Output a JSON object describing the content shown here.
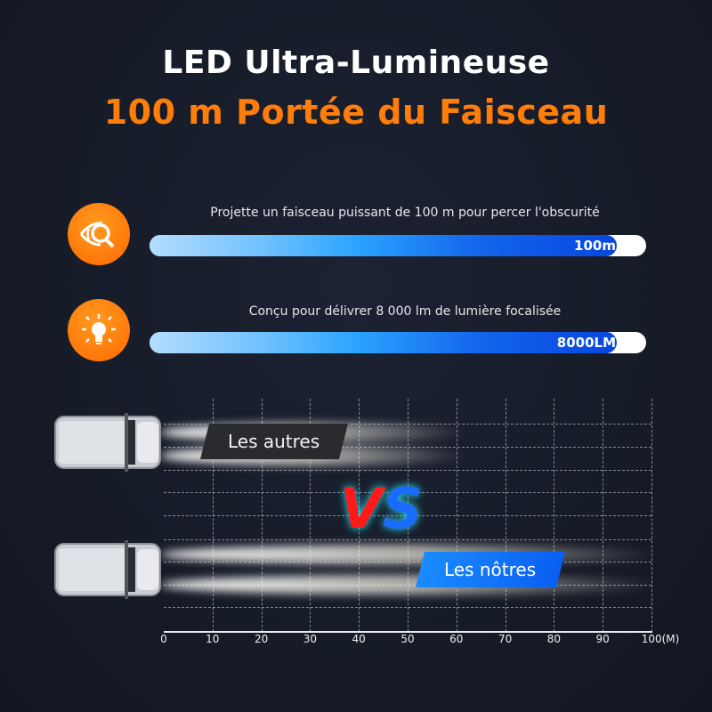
{
  "header": {
    "title": "LED Ultra-Lumineuse",
    "subtitle": "100 m Portée du Faisceau"
  },
  "features": [
    {
      "icon": "eye-search-icon",
      "description": "Projette un faisceau puissant de 100 m pour percer l'obscurité",
      "bar_label": "100m",
      "fill_percent": 94
    },
    {
      "icon": "lightbulb-icon",
      "description": "Conçu pour délivrer 8 000 lm de lumière focalisée",
      "bar_label": "8000LM",
      "fill_percent": 94
    }
  ],
  "comparison": {
    "others_label": "Les autres",
    "ours_label": "Les nôtres",
    "vs_label": "VS",
    "others_range_m": 60,
    "ours_range_m": 100,
    "axis_ticks": [
      "0",
      "10",
      "20",
      "30",
      "40",
      "50",
      "60",
      "70",
      "80",
      "90",
      "100(M)"
    ]
  },
  "colors": {
    "accent": "#ff7d0a",
    "bar_blue": "#0646e0",
    "vs_red": "#ff1a1a",
    "vs_blue": "#1a6cff"
  }
}
